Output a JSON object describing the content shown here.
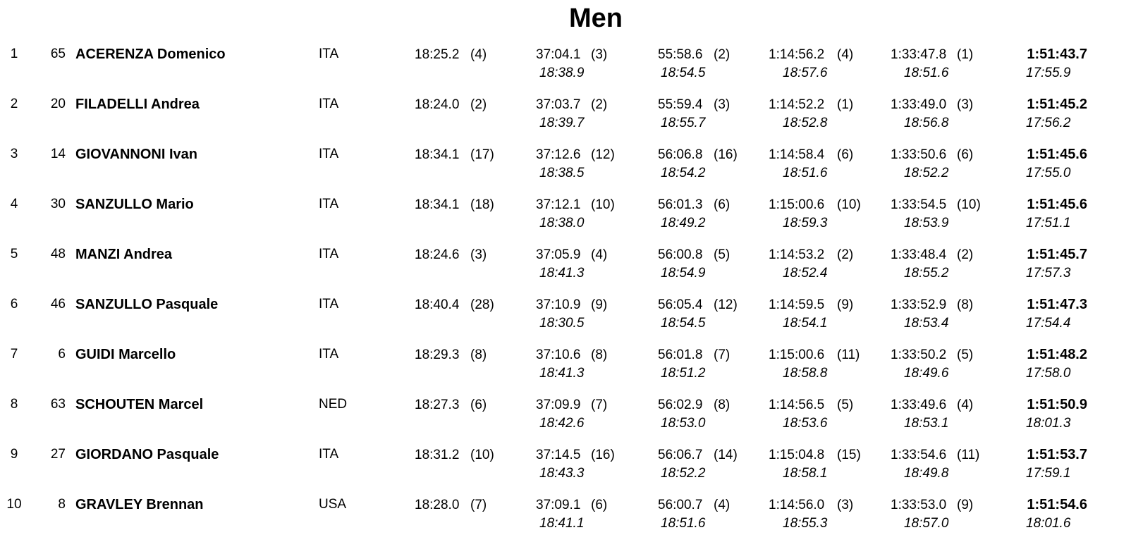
{
  "title": "Men",
  "rows": [
    {
      "rank": "1",
      "bib": "65",
      "name": "ACERENZA Domenico",
      "nation": "ITA",
      "splits": [
        {
          "time": "18:25.2",
          "pos": "(4)"
        },
        {
          "time": "37:04.1",
          "pos": "(3)",
          "lap": "18:38.9"
        },
        {
          "time": "55:58.6",
          "pos": "(2)",
          "lap": "18:54.5"
        },
        {
          "time": "1:14:56.2",
          "pos": "(4)",
          "lap": "18:57.6"
        },
        {
          "time": "1:33:47.8",
          "pos": "(1)",
          "lap": "18:51.6"
        }
      ],
      "finish": {
        "time": "1:51:43.7",
        "lap": "17:55.9"
      }
    },
    {
      "rank": "2",
      "bib": "20",
      "name": "FILADELLI Andrea",
      "nation": "ITA",
      "splits": [
        {
          "time": "18:24.0",
          "pos": "(2)"
        },
        {
          "time": "37:03.7",
          "pos": "(2)",
          "lap": "18:39.7"
        },
        {
          "time": "55:59.4",
          "pos": "(3)",
          "lap": "18:55.7"
        },
        {
          "time": "1:14:52.2",
          "pos": "(1)",
          "lap": "18:52.8"
        },
        {
          "time": "1:33:49.0",
          "pos": "(3)",
          "lap": "18:56.8"
        }
      ],
      "finish": {
        "time": "1:51:45.2",
        "lap": "17:56.2"
      }
    },
    {
      "rank": "3",
      "bib": "14",
      "name": "GIOVANNONI Ivan",
      "nation": "ITA",
      "splits": [
        {
          "time": "18:34.1",
          "pos": "(17)"
        },
        {
          "time": "37:12.6",
          "pos": "(12)",
          "lap": "18:38.5"
        },
        {
          "time": "56:06.8",
          "pos": "(16)",
          "lap": "18:54.2"
        },
        {
          "time": "1:14:58.4",
          "pos": "(6)",
          "lap": "18:51.6"
        },
        {
          "time": "1:33:50.6",
          "pos": "(6)",
          "lap": "18:52.2"
        }
      ],
      "finish": {
        "time": "1:51:45.6",
        "lap": "17:55.0"
      }
    },
    {
      "rank": "4",
      "bib": "30",
      "name": "SANZULLO Mario",
      "nation": "ITA",
      "splits": [
        {
          "time": "18:34.1",
          "pos": "(18)"
        },
        {
          "time": "37:12.1",
          "pos": "(10)",
          "lap": "18:38.0"
        },
        {
          "time": "56:01.3",
          "pos": "(6)",
          "lap": "18:49.2"
        },
        {
          "time": "1:15:00.6",
          "pos": "(10)",
          "lap": "18:59.3"
        },
        {
          "time": "1:33:54.5",
          "pos": "(10)",
          "lap": "18:53.9"
        }
      ],
      "finish": {
        "time": "1:51:45.6",
        "lap": "17:51.1"
      }
    },
    {
      "rank": "5",
      "bib": "48",
      "name": "MANZI Andrea",
      "nation": "ITA",
      "splits": [
        {
          "time": "18:24.6",
          "pos": "(3)"
        },
        {
          "time": "37:05.9",
          "pos": "(4)",
          "lap": "18:41.3"
        },
        {
          "time": "56:00.8",
          "pos": "(5)",
          "lap": "18:54.9"
        },
        {
          "time": "1:14:53.2",
          "pos": "(2)",
          "lap": "18:52.4"
        },
        {
          "time": "1:33:48.4",
          "pos": "(2)",
          "lap": "18:55.2"
        }
      ],
      "finish": {
        "time": "1:51:45.7",
        "lap": "17:57.3"
      }
    },
    {
      "rank": "6",
      "bib": "46",
      "name": "SANZULLO Pasquale",
      "nation": "ITA",
      "splits": [
        {
          "time": "18:40.4",
          "pos": "(28)"
        },
        {
          "time": "37:10.9",
          "pos": "(9)",
          "lap": "18:30.5"
        },
        {
          "time": "56:05.4",
          "pos": "(12)",
          "lap": "18:54.5"
        },
        {
          "time": "1:14:59.5",
          "pos": "(9)",
          "lap": "18:54.1"
        },
        {
          "time": "1:33:52.9",
          "pos": "(8)",
          "lap": "18:53.4"
        }
      ],
      "finish": {
        "time": "1:51:47.3",
        "lap": "17:54.4"
      }
    },
    {
      "rank": "7",
      "bib": "6",
      "name": "GUIDI Marcello",
      "nation": "ITA",
      "splits": [
        {
          "time": "18:29.3",
          "pos": "(8)"
        },
        {
          "time": "37:10.6",
          "pos": "(8)",
          "lap": "18:41.3"
        },
        {
          "time": "56:01.8",
          "pos": "(7)",
          "lap": "18:51.2"
        },
        {
          "time": "1:15:00.6",
          "pos": "(11)",
          "lap": "18:58.8"
        },
        {
          "time": "1:33:50.2",
          "pos": "(5)",
          "lap": "18:49.6"
        }
      ],
      "finish": {
        "time": "1:51:48.2",
        "lap": "17:58.0"
      }
    },
    {
      "rank": "8",
      "bib": "63",
      "name": "SCHOUTEN Marcel",
      "nation": "NED",
      "splits": [
        {
          "time": "18:27.3",
          "pos": "(6)"
        },
        {
          "time": "37:09.9",
          "pos": "(7)",
          "lap": "18:42.6"
        },
        {
          "time": "56:02.9",
          "pos": "(8)",
          "lap": "18:53.0"
        },
        {
          "time": "1:14:56.5",
          "pos": "(5)",
          "lap": "18:53.6"
        },
        {
          "time": "1:33:49.6",
          "pos": "(4)",
          "lap": "18:53.1"
        }
      ],
      "finish": {
        "time": "1:51:50.9",
        "lap": "18:01.3"
      }
    },
    {
      "rank": "9",
      "bib": "27",
      "name": "GIORDANO Pasquale",
      "nation": "ITA",
      "splits": [
        {
          "time": "18:31.2",
          "pos": "(10)"
        },
        {
          "time": "37:14.5",
          "pos": "(16)",
          "lap": "18:43.3"
        },
        {
          "time": "56:06.7",
          "pos": "(14)",
          "lap": "18:52.2"
        },
        {
          "time": "1:15:04.8",
          "pos": "(15)",
          "lap": "18:58.1"
        },
        {
          "time": "1:33:54.6",
          "pos": "(11)",
          "lap": "18:49.8"
        }
      ],
      "finish": {
        "time": "1:51:53.7",
        "lap": "17:59.1"
      }
    },
    {
      "rank": "10",
      "bib": "8",
      "name": "GRAVLEY Brennan",
      "nation": "USA",
      "splits": [
        {
          "time": "18:28.0",
          "pos": "(7)"
        },
        {
          "time": "37:09.1",
          "pos": "(6)",
          "lap": "18:41.1"
        },
        {
          "time": "56:00.7",
          "pos": "(4)",
          "lap": "18:51.6"
        },
        {
          "time": "1:14:56.0",
          "pos": "(3)",
          "lap": "18:55.3"
        },
        {
          "time": "1:33:53.0",
          "pos": "(9)",
          "lap": "18:57.0"
        }
      ],
      "finish": {
        "time": "1:51:54.6",
        "lap": "18:01.6"
      }
    }
  ]
}
